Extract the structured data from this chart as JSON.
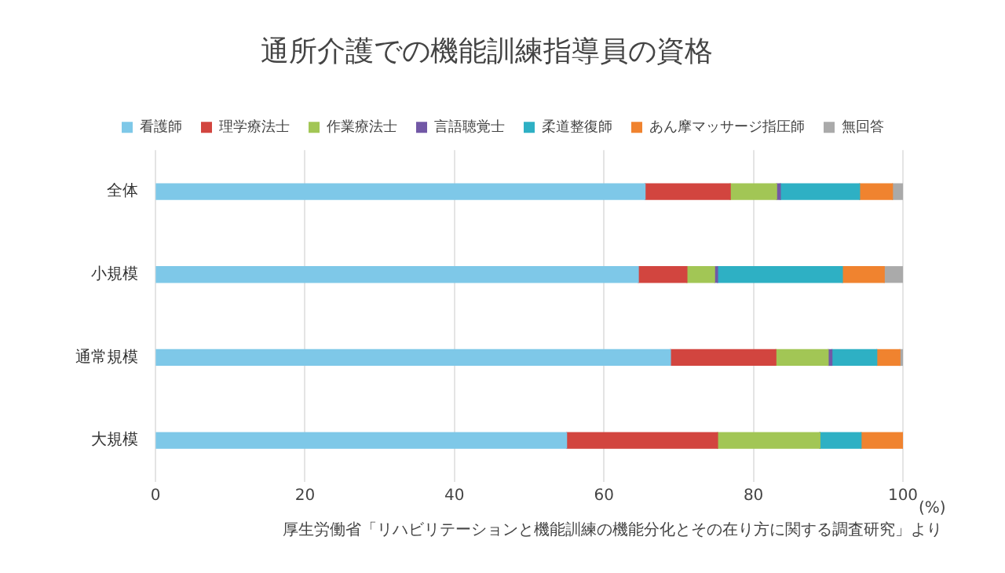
{
  "chart_data": {
    "type": "bar",
    "orientation": "horizontal",
    "stacked": true,
    "title": "通所介護での機能訓練指導員の資格",
    "xlabel": "(%)",
    "categories": [
      "全体",
      "小規模",
      "通常規模",
      "大規模"
    ],
    "series": [
      {
        "name": "看護師",
        "color": "#7ec8e8",
        "values": [
          65.5,
          64.6,
          68.9,
          55.0
        ]
      },
      {
        "name": "理学療法士",
        "color": "#d2453f",
        "values": [
          11.4,
          6.5,
          14.1,
          20.2
        ]
      },
      {
        "name": "作業療法士",
        "color": "#a2c655",
        "values": [
          6.2,
          3.7,
          7.0,
          13.7
        ]
      },
      {
        "name": "言語聴覚士",
        "color": "#7258a6",
        "values": [
          0.5,
          0.4,
          0.5,
          0
        ]
      },
      {
        "name": "柔道整復師",
        "color": "#2eb0c4",
        "values": [
          10.6,
          16.7,
          6.0,
          5.5
        ]
      },
      {
        "name": "あん摩マッサージ指圧師",
        "color": "#f0832f",
        "values": [
          4.4,
          5.6,
          3.1,
          5.6
        ]
      },
      {
        "name": "無回答",
        "color": "#aaaaaa",
        "values": [
          1.4,
          2.5,
          0.4,
          0
        ]
      }
    ],
    "xlim": [
      0,
      100
    ],
    "xticks": [
      0,
      20,
      40,
      60,
      80,
      100
    ],
    "grid": "x",
    "legend": "top",
    "annotations": [
      "厚生労働省「リハビリテーションと機能訓練の機能分化とその在り方に関する調査研究」より"
    ]
  }
}
